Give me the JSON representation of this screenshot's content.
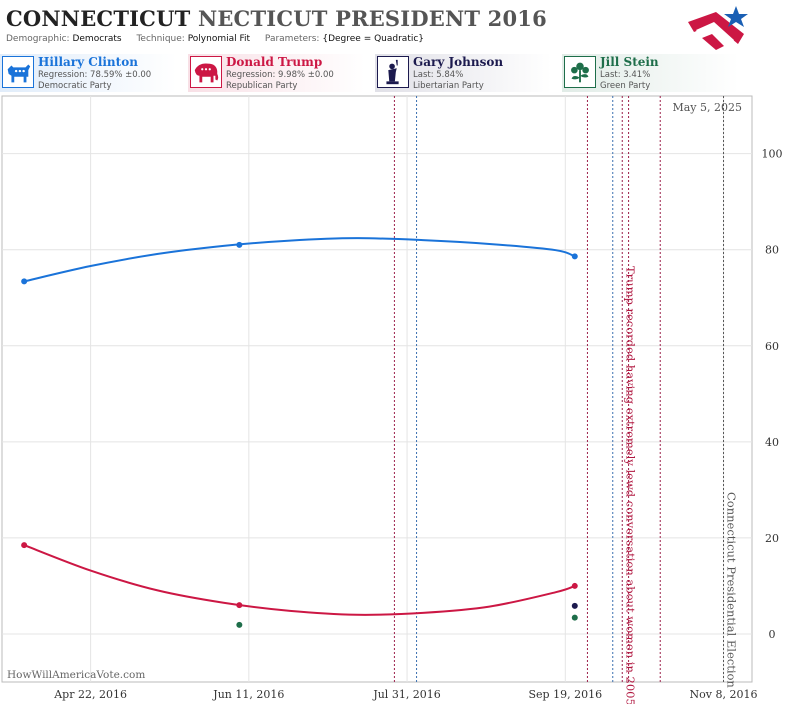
{
  "header": {
    "title_main": "CONNECTICUT",
    "title_sub": "NECTICUT PRESIDENT 2016",
    "demographic_label": "Demographic:",
    "demographic_value": "Democrats",
    "technique_label": "Technique:",
    "technique_value": "Polynomial Fit",
    "parameters_label": "Parameters:",
    "parameters_value": "{Degree = Quadratic}"
  },
  "candidates": [
    {
      "name": "Hillary Clinton",
      "line2": "Regression: 78.59% ±0.00",
      "line3": "Democratic Party",
      "color": "#1a73d9",
      "icon": "democrat-donkey-icon"
    },
    {
      "name": "Donald Trump",
      "line2": "Regression: 9.98% ±0.00",
      "line3": "Republican Party",
      "color": "#cc1744",
      "icon": "republican-elephant-icon"
    },
    {
      "name": "Gary Johnson",
      "line2": "Last: 5.84%",
      "line3": "Libertarian Party",
      "color": "#1c1a4e",
      "icon": "statue-of-liberty-icon"
    },
    {
      "name": "Jill Stein",
      "line2": "Last: 3.41%",
      "line3": "Green Party",
      "color": "#1e6e4a",
      "icon": "green-party-flower-icon"
    }
  ],
  "chart_data": {
    "type": "line",
    "date_label": "May 5, 2025",
    "watermark": "HowWillAmericaVote.com",
    "x_ticks": [
      "Apr 22, 2016",
      "Jun 11, 2016",
      "Jul 31, 2016",
      "Sep 19, 2016",
      "Nov 8, 2016"
    ],
    "xlim": [
      "2016-03-25",
      "2016-11-17"
    ],
    "y_ticks": [
      0,
      20,
      40,
      60,
      80,
      100
    ],
    "ylim": [
      -10,
      112
    ],
    "grid": true,
    "series": [
      {
        "name": "Hillary Clinton",
        "color": "#1a73d9",
        "curve": [
          [
            "2016-04-01",
            73.4
          ],
          [
            "2016-04-22",
            76.6
          ],
          [
            "2016-05-13",
            79.1
          ],
          [
            "2016-06-03",
            80.8
          ],
          [
            "2016-06-24",
            81.9
          ],
          [
            "2016-07-15",
            82.4
          ],
          [
            "2016-08-05",
            82.0
          ],
          [
            "2016-08-26",
            81.2
          ],
          [
            "2016-09-16",
            79.9
          ],
          [
            "2016-09-22",
            78.6
          ]
        ],
        "points": [
          [
            "2016-04-01",
            73.4
          ],
          [
            "2016-06-08",
            81.0
          ],
          [
            "2016-09-22",
            78.6
          ]
        ]
      },
      {
        "name": "Donald Trump",
        "color": "#cc1744",
        "curve": [
          [
            "2016-04-01",
            18.5
          ],
          [
            "2016-04-22",
            13.2
          ],
          [
            "2016-05-13",
            9.1
          ],
          [
            "2016-06-03",
            6.5
          ],
          [
            "2016-06-24",
            4.8
          ],
          [
            "2016-07-15",
            4.0
          ],
          [
            "2016-08-05",
            4.4
          ],
          [
            "2016-08-26",
            5.7
          ],
          [
            "2016-09-16",
            8.7
          ],
          [
            "2016-09-22",
            10.0
          ]
        ],
        "points": [
          [
            "2016-04-01",
            18.5
          ],
          [
            "2016-06-08",
            6.0
          ],
          [
            "2016-09-22",
            10.0
          ]
        ]
      },
      {
        "name": "Gary Johnson",
        "color": "#1c1a4e",
        "curve": [],
        "points": [
          [
            "2016-09-22",
            5.84
          ]
        ]
      },
      {
        "name": "Jill Stein",
        "color": "#1e6e4a",
        "curve": [],
        "points": [
          [
            "2016-06-08",
            1.9
          ],
          [
            "2016-09-22",
            3.41
          ]
        ]
      }
    ],
    "vlines": [
      {
        "date": "2016-07-27",
        "color": "#9c1f4a"
      },
      {
        "date": "2016-08-03",
        "color": "#3a6fb0"
      },
      {
        "date": "2016-09-26",
        "color": "#9c1f4a"
      },
      {
        "date": "2016-10-04",
        "color": "#3a6fb0"
      },
      {
        "date": "2016-10-07",
        "color": "#9c1f4a"
      },
      {
        "date": "2016-10-09",
        "color": "#9c1f4a"
      },
      {
        "date": "2016-10-19",
        "color": "#9c1f4a"
      },
      {
        "date": "2016-11-08",
        "color": "#555555"
      }
    ],
    "annotations": [
      {
        "text": "Trump recorded having extremely lewd conversation about women in 2005.",
        "date": "2016-10-07",
        "color": "#b0163f"
      },
      {
        "text": "Connecticut Presidential Election",
        "date": "2016-11-08",
        "color": "#555555"
      }
    ]
  }
}
